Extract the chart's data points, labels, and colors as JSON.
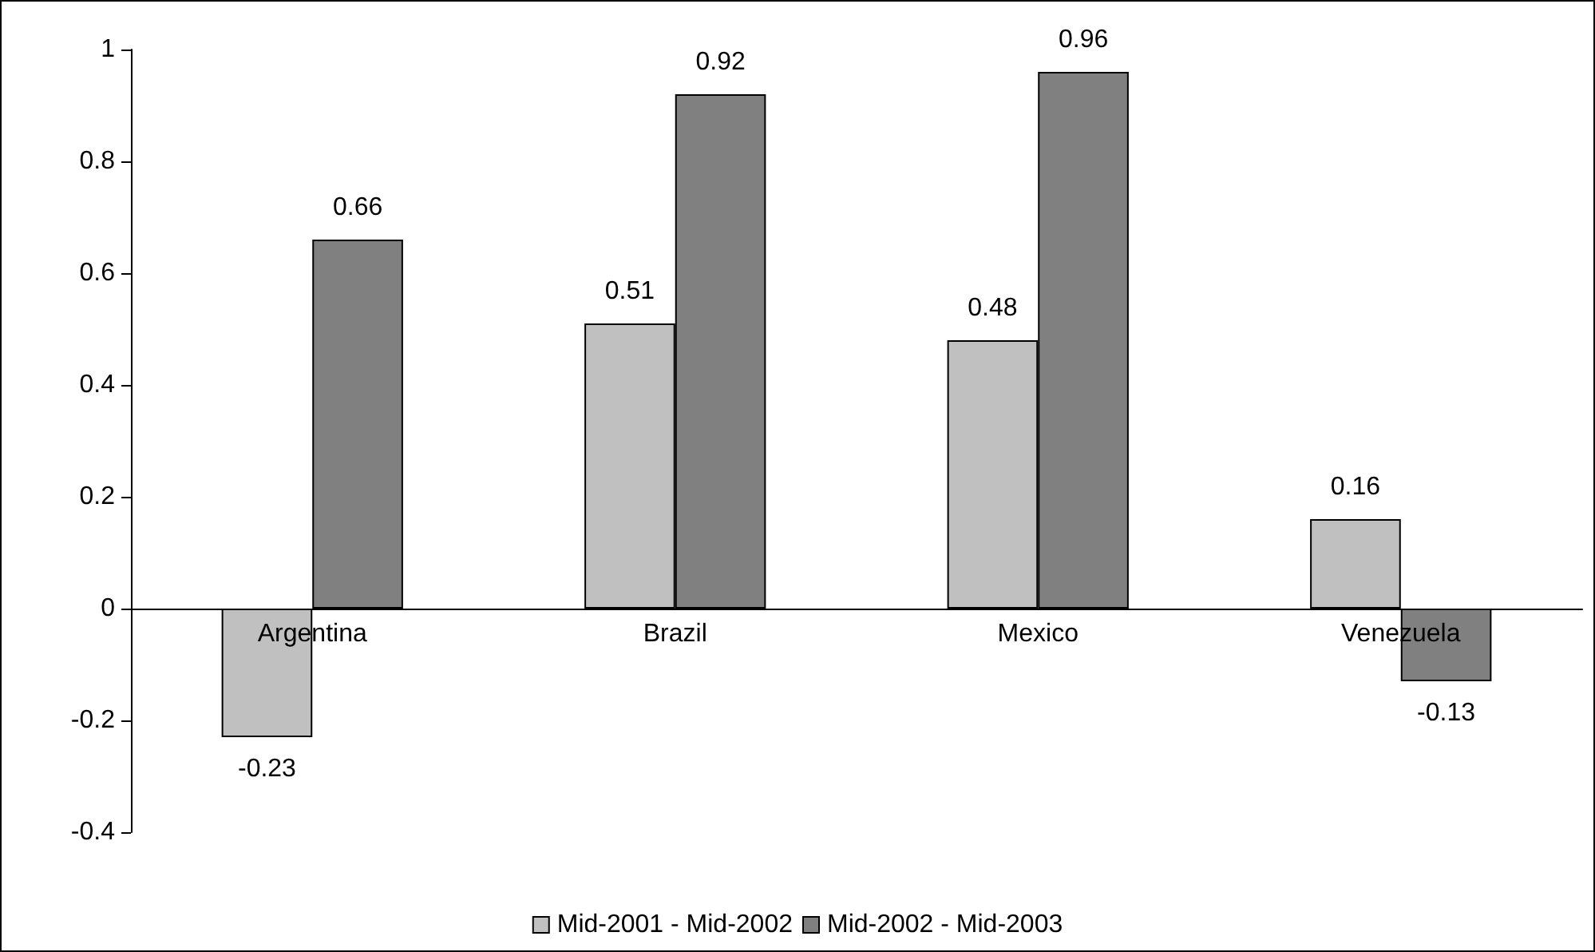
{
  "chart_data": {
    "type": "bar",
    "categories": [
      "Argentina",
      "Brazil",
      "Mexico",
      "Venezuela"
    ],
    "series": [
      {
        "name": "Mid-2001 - Mid-2002",
        "color": "#c0c0c0",
        "values": [
          -0.23,
          0.51,
          0.48,
          0.16
        ]
      },
      {
        "name": "Mid-2002 - Mid-2003",
        "color": "#808080",
        "values": [
          0.66,
          0.92,
          0.96,
          -0.13
        ]
      }
    ],
    "ylim": [
      -0.4,
      1
    ],
    "yticks": [
      -0.4,
      -0.2,
      0,
      0.2,
      0.4,
      0.6,
      0.8,
      1
    ],
    "legend": "bottom",
    "data_labels": true
  }
}
